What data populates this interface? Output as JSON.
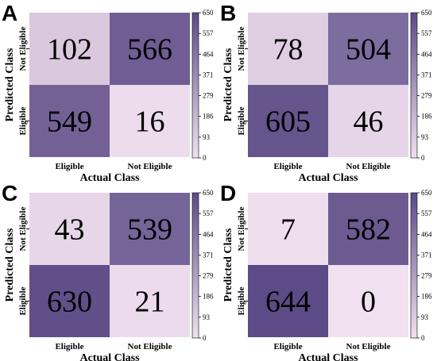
{
  "colors": {
    "low": "#f1e0ef",
    "high": "#5c4a86"
  },
  "chart_data": [
    {
      "type": "heatmap",
      "panel_label": "A",
      "xlabel": "Actual Class",
      "ylabel": "Predicted Class",
      "x_categories": [
        "Eligible",
        "Not Eligible"
      ],
      "y_categories": [
        "Not Eligible",
        "Eligible"
      ],
      "values": [
        [
          102,
          566
        ],
        [
          549,
          16
        ]
      ],
      "colorbar": {
        "ticks": [
          "650",
          "557",
          "464",
          "371",
          "279",
          "186",
          "93",
          "0"
        ],
        "range": [
          0,
          650
        ]
      }
    },
    {
      "type": "heatmap",
      "panel_label": "B",
      "xlabel": "Actual Class",
      "ylabel": "Predicted Class",
      "x_categories": [
        "Eligible",
        "Not Eligible"
      ],
      "y_categories": [
        "Not Eligible",
        "Eligible"
      ],
      "values": [
        [
          78,
          504
        ],
        [
          605,
          46
        ]
      ],
      "colorbar": {
        "ticks": [
          "650",
          "557",
          "464",
          "371",
          "279",
          "186",
          "93",
          "0"
        ],
        "range": [
          0,
          650
        ]
      }
    },
    {
      "type": "heatmap",
      "panel_label": "C",
      "xlabel": "Actual Class",
      "ylabel": "Predicted Class",
      "x_categories": [
        "Eligible",
        "Not Eligible"
      ],
      "y_categories": [
        "Not Eligible",
        "Eligible"
      ],
      "values": [
        [
          43,
          539
        ],
        [
          630,
          21
        ]
      ],
      "colorbar": {
        "ticks": [
          "650",
          "557",
          "464",
          "371",
          "279",
          "186",
          "93",
          "0"
        ],
        "range": [
          0,
          650
        ]
      }
    },
    {
      "type": "heatmap",
      "panel_label": "D",
      "xlabel": "Actual Class",
      "ylabel": "Predicted Class",
      "x_categories": [
        "Eligible",
        "Not Eligible"
      ],
      "y_categories": [
        "Not Eligible",
        "Eligible"
      ],
      "values": [
        [
          7,
          582
        ],
        [
          644,
          0
        ]
      ],
      "colorbar": {
        "ticks": [
          "650",
          "557",
          "464",
          "371",
          "279",
          "186",
          "93",
          "0"
        ],
        "range": [
          0,
          650
        ]
      }
    }
  ]
}
